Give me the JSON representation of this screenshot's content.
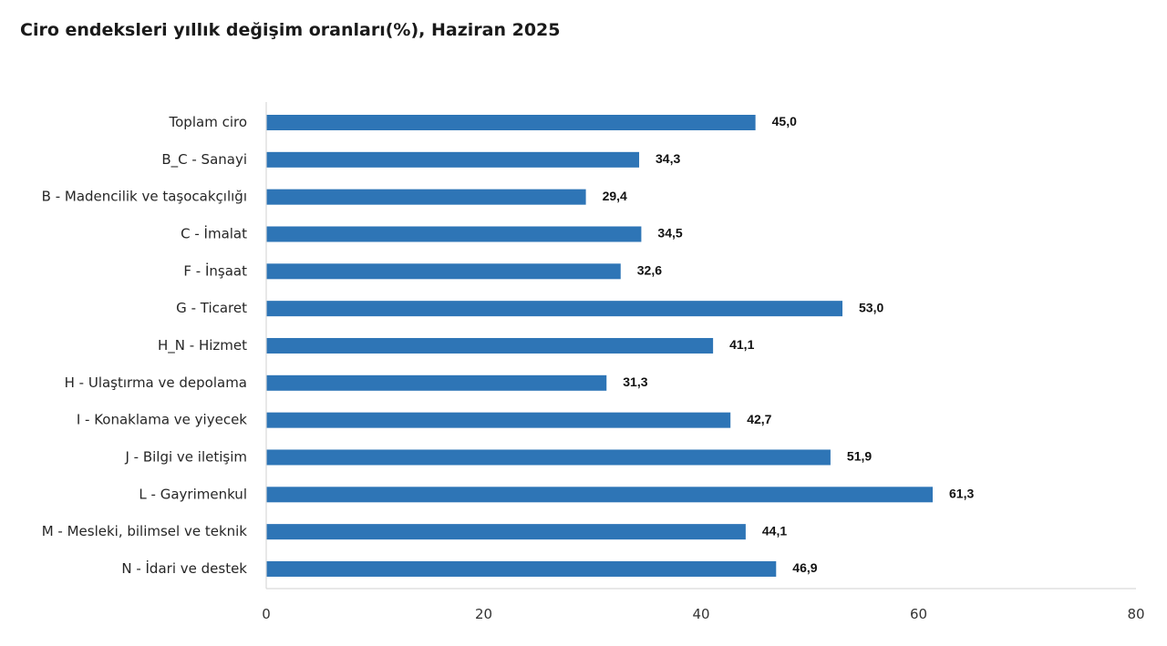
{
  "chart_data": {
    "type": "bar",
    "orientation": "horizontal",
    "title": "Ciro endeksleri yıllık değişim oranları(%), Haziran 2025",
    "categories": [
      "Toplam ciro",
      "B_C - Sanayi",
      "B - Madencilik ve taşocakçılığı",
      "C - İmalat",
      "F - İnşaat",
      "G - Ticaret",
      "H_N - Hizmet",
      "H - Ulaştırma ve depolama",
      "I - Konaklama ve yiyecek",
      "J - Bilgi ve iletişim",
      "L - Gayrimenkul",
      "M - Mesleki, bilimsel ve teknik",
      "N - İdari ve destek"
    ],
    "values": [
      45.0,
      34.3,
      29.4,
      34.5,
      32.6,
      53.0,
      41.1,
      31.3,
      42.7,
      51.9,
      61.3,
      44.1,
      46.9
    ],
    "value_labels": [
      "45,0",
      "34,3",
      "29,4",
      "34,5",
      "32,6",
      "53,0",
      "41,1",
      "31,3",
      "42,7",
      "51,9",
      "61,3",
      "44,1",
      "46,9"
    ],
    "xlim": [
      0,
      80
    ],
    "xticks": [
      0,
      20,
      40,
      60,
      80
    ],
    "xtick_labels": [
      "0",
      "20",
      "40",
      "60",
      "80"
    ],
    "xlabel": "",
    "ylabel": "",
    "grid": false,
    "legend": "none",
    "bar_color": "#2e75b6",
    "axis_color": "#d9d9d9"
  }
}
